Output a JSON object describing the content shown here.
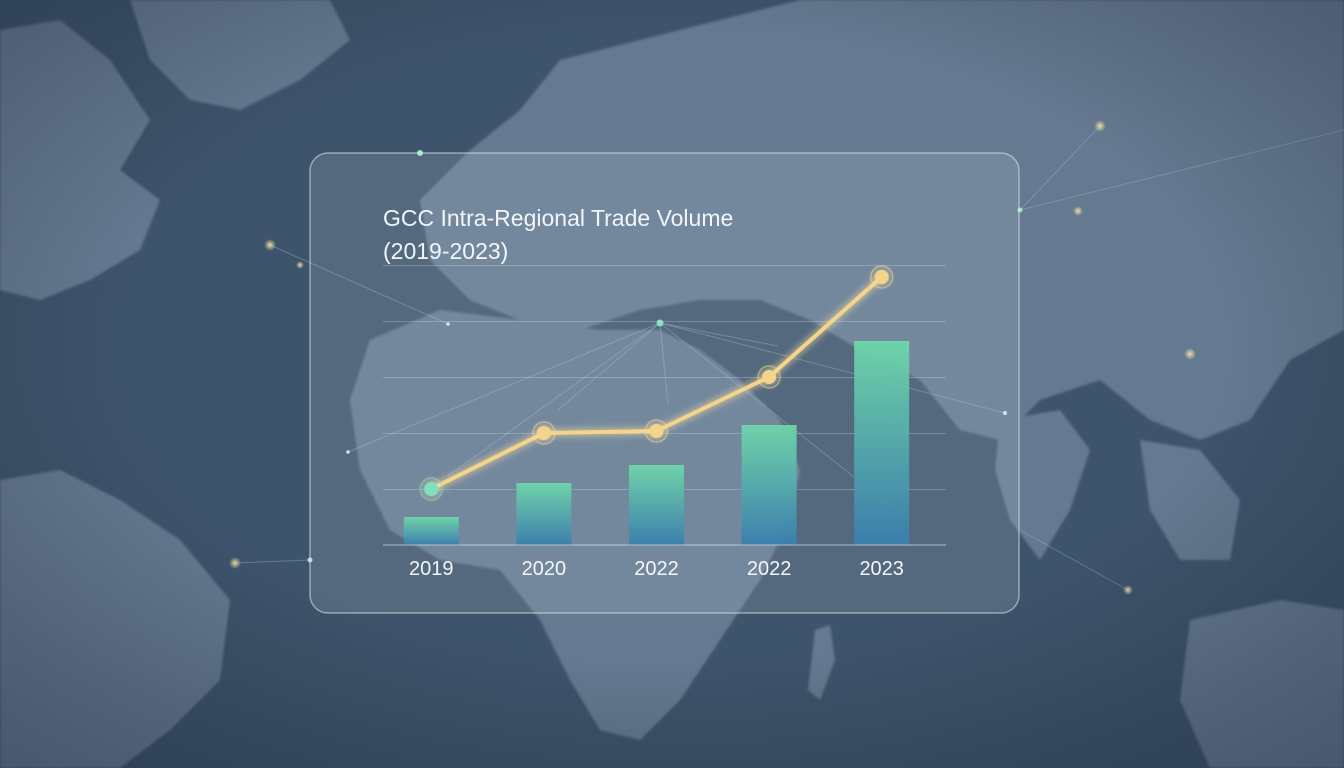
{
  "chart_data": {
    "type": "bar",
    "title": "GCC Intra-Regional Trade Volume",
    "subtitle": "(2019-2023)",
    "categories": [
      "2019",
      "2020",
      "2022",
      "2022",
      "2023"
    ],
    "series": [
      {
        "kind": "bar",
        "values": [
          14,
          31,
          40,
          60,
          102
        ]
      },
      {
        "kind": "line",
        "values": [
          28,
          56,
          57,
          84,
          134
        ]
      }
    ],
    "ylim": [
      0,
      140
    ],
    "grid": true,
    "legend": "none"
  },
  "colors": {
    "background": "#3e546c",
    "land": "#6d8199",
    "bar_top": "#6fd6a9",
    "bar_bottom": "#3a7fae",
    "line": "#f4d488",
    "marker_first": "#7ee0bd"
  }
}
